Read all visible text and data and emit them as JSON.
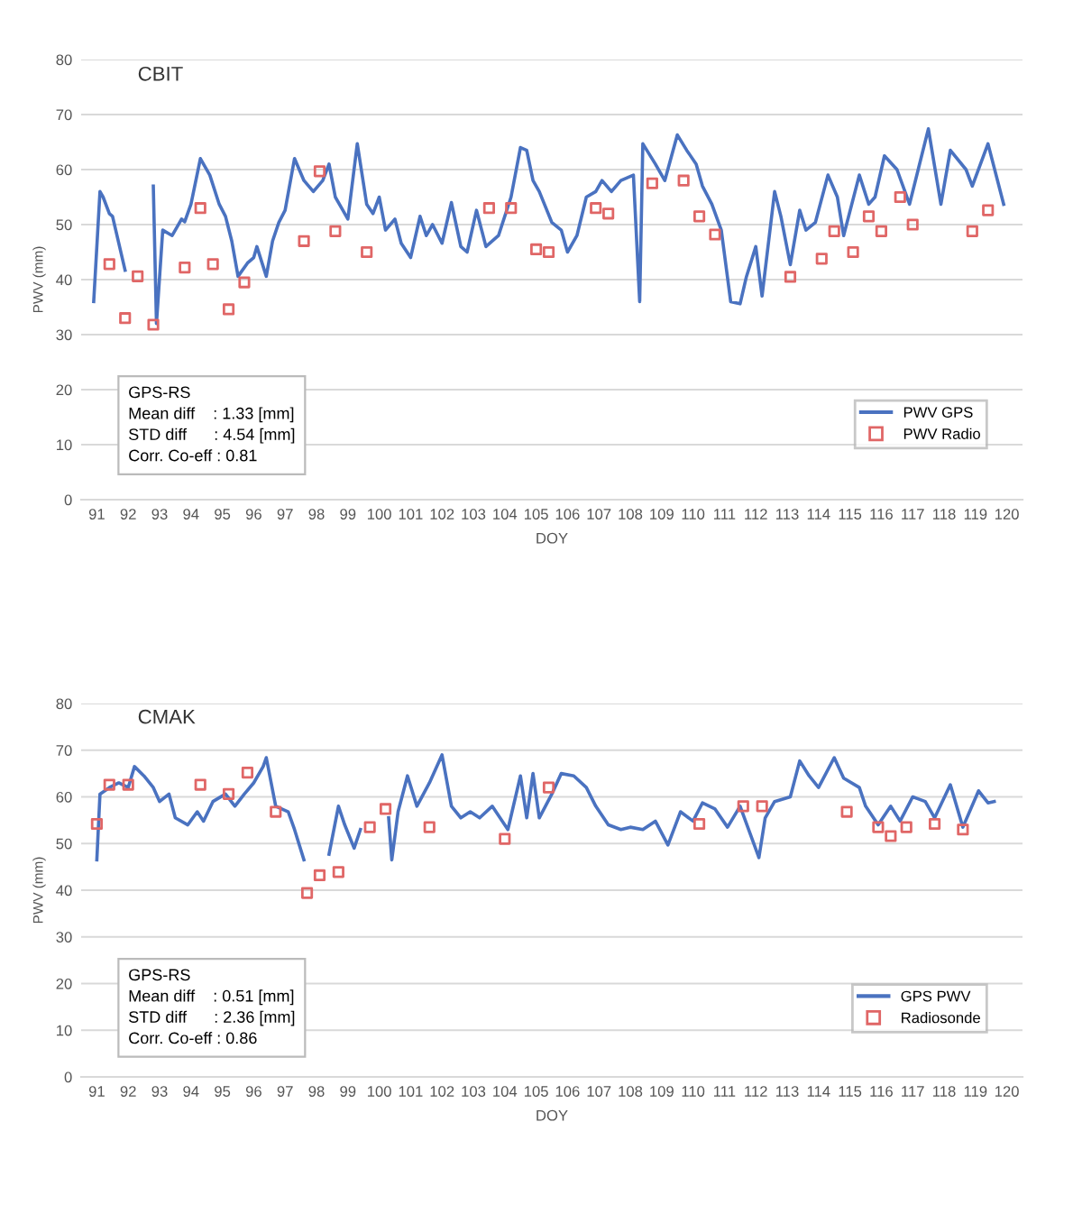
{
  "chart_data": [
    {
      "type": "line",
      "title": "CBIT",
      "xlabel": "DOY",
      "ylabel": "PWV (mm)",
      "xlim": [
        90.5,
        120.5
      ],
      "xticks": [
        91,
        92,
        93,
        94,
        95,
        96,
        97,
        98,
        99,
        100,
        101,
        102,
        103,
        104,
        105,
        106,
        107,
        108,
        109,
        110,
        111,
        112,
        113,
        114,
        115,
        116,
        117,
        118,
        119,
        120
      ],
      "ylim": [
        0,
        80
      ],
      "yticks": [
        0,
        10,
        20,
        30,
        40,
        50,
        60,
        70,
        80
      ],
      "grid": "y",
      "legend": "bottom right",
      "annotations": [
        "GPS-RS",
        "Mean diff    : 1.33 [mm]",
        "STD diff      : 4.54 [mm]",
        "Corr. Co-eff : 0.81"
      ],
      "series": [
        {
          "name": "PWV GPS",
          "type": "line",
          "color": "#4a72c0",
          "marker": "none",
          "line_style": "solid",
          "x": [
            90.9,
            91.1,
            91.2,
            91.4,
            91.5,
            91.9,
            92.0,
            92.8,
            92.9,
            93.1,
            93.4,
            93.7,
            93.8,
            94.0,
            94.3,
            94.6,
            94.9,
            95.1,
            95.3,
            95.5,
            95.8,
            96.0,
            96.1,
            96.4,
            96.6,
            96.8,
            97.0,
            97.3,
            97.6,
            97.9,
            98.2,
            98.4,
            98.6,
            98.8,
            99.0,
            99.3,
            99.6,
            99.8,
            100.0,
            100.2,
            100.5,
            100.7,
            101.0,
            101.3,
            101.5,
            101.7,
            102.0,
            102.3,
            102.6,
            102.8,
            103.1,
            103.4,
            103.8,
            104.2,
            104.5,
            104.7,
            104.9,
            105.1,
            105.5,
            105.8,
            106.0,
            106.3,
            106.6,
            106.9,
            107.1,
            107.4,
            107.7,
            108.1,
            108.3,
            108.4,
            108.8,
            109.1,
            109.5,
            109.8,
            110.1,
            110.3,
            110.6,
            110.9,
            111.2,
            111.5,
            111.7,
            112.0,
            112.2,
            112.6,
            112.8,
            113.1,
            113.4,
            113.6,
            113.9,
            114.3,
            114.6,
            114.8,
            115.3,
            115.6,
            115.8,
            116.1,
            116.5,
            116.9,
            117.5,
            117.9,
            118.2,
            118.7,
            118.9,
            119.4,
            119.9
          ],
          "values": [
            36,
            56,
            55,
            52,
            51.5,
            41.7,
            null,
            57,
            32,
            49,
            48,
            51,
            50.5,
            53.7,
            62,
            59,
            53.7,
            51.5,
            47,
            40.6,
            43,
            44,
            46,
            40.6,
            47,
            50.4,
            52.6,
            62,
            58,
            56,
            58,
            61,
            55,
            53,
            51,
            64.7,
            53.7,
            52,
            55,
            49,
            51,
            46.6,
            44,
            51.5,
            48,
            50,
            46.6,
            54,
            46,
            45,
            52.6,
            46,
            48,
            55,
            64,
            63.5,
            58,
            56,
            50.4,
            49,
            45,
            48,
            55,
            56,
            58,
            56,
            58,
            59,
            36,
            64.7,
            61,
            58,
            66.3,
            63.5,
            61,
            57,
            53.7,
            49,
            36,
            35.6,
            40.5,
            46,
            37,
            56,
            51.5,
            42.7,
            52.6,
            49,
            50.4,
            59,
            55,
            48,
            59,
            53.7,
            55,
            62.5,
            60,
            53.7,
            67.4,
            53.7,
            63.5,
            60,
            57,
            64.7,
            53.7
          ]
        },
        {
          "name": "PWV Radio",
          "type": "scatter",
          "color": "#e06666",
          "marker": "square",
          "x": [
            91.4,
            91.9,
            92.3,
            92.8,
            93.8,
            94.3,
            94.7,
            95.2,
            95.7,
            97.6,
            98.1,
            98.6,
            99.6,
            103.5,
            104.2,
            105.0,
            105.4,
            106.9,
            107.3,
            108.7,
            109.7,
            110.2,
            110.7,
            113.1,
            114.1,
            114.5,
            115.1,
            115.6,
            116.0,
            116.6,
            117.0,
            118.9,
            119.4
          ],
          "values": [
            42.8,
            33,
            40.6,
            31.8,
            42.2,
            53,
            42.8,
            34.6,
            39.5,
            47,
            59.7,
            48.8,
            45,
            53,
            53,
            45.5,
            45,
            53,
            52,
            57.5,
            58,
            51.5,
            48.2,
            40.5,
            43.8,
            48.8,
            45,
            51.5,
            48.8,
            55,
            50,
            48.8,
            52.6
          ]
        }
      ]
    },
    {
      "type": "line",
      "title": "CMAK",
      "xlabel": "DOY",
      "ylabel": "PWV (mm)",
      "xlim": [
        90.5,
        120.5
      ],
      "xticks": [
        91,
        92,
        93,
        94,
        95,
        96,
        97,
        98,
        99,
        100,
        101,
        102,
        103,
        104,
        105,
        106,
        107,
        108,
        109,
        110,
        111,
        112,
        113,
        114,
        115,
        116,
        117,
        118,
        119,
        120
      ],
      "ylim": [
        0,
        80
      ],
      "yticks": [
        0,
        10,
        20,
        30,
        40,
        50,
        60,
        70,
        80
      ],
      "grid": "y",
      "legend": "bottom right",
      "annotations": [
        "GPS-RS",
        "Mean diff    : 0.51 [mm]",
        "STD diff      : 2.36 [mm]",
        "Corr. Co-eff : 0.86"
      ],
      "series": [
        {
          "name": "GPS PWV",
          "type": "line",
          "color": "#4a72c0",
          "marker": "none",
          "line_style": "solid",
          "x": [
            91.0,
            91.1,
            91.4,
            91.7,
            92.0,
            92.2,
            92.5,
            92.8,
            93.0,
            93.3,
            93.5,
            93.9,
            94.2,
            94.4,
            94.7,
            95.1,
            95.4,
            95.7,
            96.0,
            96.3,
            96.4,
            96.7,
            97.1,
            97.3,
            97.6,
            98.0,
            98.4,
            98.7,
            98.9,
            99.2,
            99.4,
            99.9,
            100.3,
            100.4,
            100.6,
            100.9,
            101.2,
            101.6,
            102.0,
            102.3,
            102.6,
            102.9,
            103.2,
            103.6,
            104.1,
            104.5,
            104.7,
            104.9,
            105.1,
            105.5,
            105.8,
            106.2,
            106.6,
            106.9,
            107.3,
            107.7,
            108.0,
            108.4,
            108.8,
            109.2,
            109.6,
            110.0,
            110.3,
            110.7,
            111.1,
            111.5,
            112.1,
            112.3,
            112.6,
            113.1,
            113.4,
            113.7,
            114.0,
            114.5,
            114.8,
            115.3,
            115.5,
            115.9,
            116.3,
            116.6,
            117.0,
            117.4,
            117.7,
            118.2,
            118.6,
            119.1,
            119.4,
            119.6
          ],
          "values": [
            46.5,
            60.6,
            62,
            63,
            62,
            66.5,
            64.5,
            62,
            59,
            60.6,
            55.5,
            54,
            56.8,
            54.8,
            59,
            60.6,
            58,
            60.6,
            63,
            66.5,
            68.4,
            58,
            56.8,
            53,
            46.5,
            null,
            47.7,
            58,
            54,
            49,
            53,
            null,
            55.5,
            46.5,
            56.8,
            64.5,
            58,
            63,
            69,
            58,
            55.5,
            56.8,
            55.5,
            58,
            53,
            64.5,
            55.5,
            65,
            55.5,
            60.6,
            65,
            64.5,
            62,
            58,
            54,
            53,
            53.5,
            53,
            54.8,
            49.7,
            56.8,
            54.8,
            58.7,
            57.4,
            53.5,
            58,
            47,
            55.5,
            59,
            60,
            67.7,
            64.5,
            62,
            68.4,
            64,
            62,
            58,
            54,
            58,
            54.8,
            60,
            59,
            55.5,
            62.6,
            53.5,
            61.3,
            58.7,
            59
          ]
        },
        {
          "name": "Radiosonde",
          "type": "scatter",
          "color": "#e06666",
          "marker": "square",
          "x": [
            91.0,
            91.4,
            92.0,
            94.3,
            95.2,
            95.8,
            96.7,
            97.7,
            98.1,
            98.7,
            99.7,
            100.2,
            101.6,
            104.0,
            105.4,
            110.2,
            111.6,
            112.2,
            114.9,
            115.9,
            116.3,
            116.8,
            117.7,
            118.6
          ],
          "values": [
            54.2,
            62.6,
            62.6,
            62.6,
            60.6,
            65.2,
            56.8,
            39.4,
            43.2,
            43.9,
            53.5,
            57.4,
            53.5,
            51,
            62,
            54.2,
            58,
            58,
            56.8,
            53.5,
            51.6,
            53.5,
            54.2,
            53
          ]
        }
      ]
    }
  ]
}
